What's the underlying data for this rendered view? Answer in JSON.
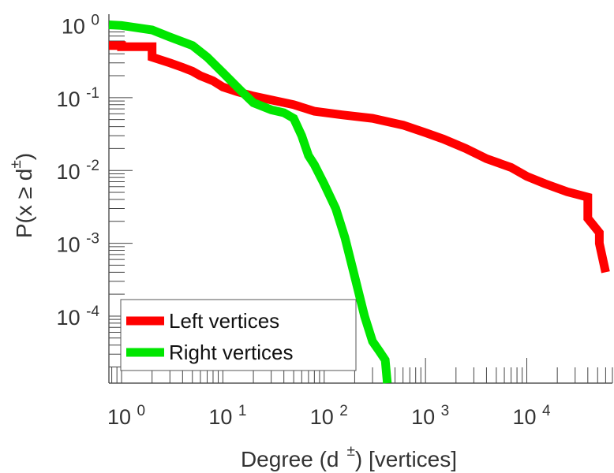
{
  "chart_data": {
    "type": "line",
    "title": "",
    "xlabel": {
      "main": "Degree (d",
      "sup": "±",
      "suffix": ") [vertices]"
    },
    "ylabel": {
      "main": "P(x ≥ d",
      "sup": "±",
      "suffix": ")"
    },
    "xscale": "log",
    "yscale": "log",
    "xlim": [
      0.75,
      70000
    ],
    "ylim": [
      1.2e-05,
      1.4
    ],
    "grid": false,
    "legend_position": "bottom-left",
    "xticks": [
      {
        "value": 1,
        "base": "10",
        "exp": "0"
      },
      {
        "value": 10,
        "base": "10",
        "exp": "1"
      },
      {
        "value": 100,
        "base": "10",
        "exp": "2"
      },
      {
        "value": 1000,
        "base": "10",
        "exp": "3"
      },
      {
        "value": 10000,
        "base": "10",
        "exp": "4"
      }
    ],
    "yticks": [
      {
        "value": 1,
        "base": "10",
        "exp": "0"
      },
      {
        "value": 0.1,
        "base": "10",
        "exp": "-1"
      },
      {
        "value": 0.01,
        "base": "10",
        "exp": "-2"
      },
      {
        "value": 0.001,
        "base": "10",
        "exp": "-3"
      },
      {
        "value": 0.0001,
        "base": "10",
        "exp": "-4"
      }
    ],
    "series": [
      {
        "name": "Left vertices",
        "color": "#ff0000",
        "x": [
          0.75,
          1,
          1,
          2,
          2,
          3,
          4,
          5,
          6,
          8,
          10,
          14,
          20,
          30,
          50,
          80,
          150,
          300,
          600,
          1000,
          1500,
          2500,
          4000,
          7000,
          10000,
          15000,
          25000,
          40000,
          40000,
          52000,
          52000,
          60000
        ],
        "y": [
          0.52,
          0.52,
          0.5,
          0.5,
          0.36,
          0.3,
          0.26,
          0.23,
          0.2,
          0.17,
          0.14,
          0.12,
          0.105,
          0.093,
          0.08,
          0.065,
          0.058,
          0.052,
          0.042,
          0.033,
          0.027,
          0.02,
          0.0145,
          0.011,
          0.0083,
          0.0066,
          0.0051,
          0.0043,
          0.0022,
          0.0014,
          0.001,
          0.0004
        ]
      },
      {
        "name": "Right vertices",
        "color": "#00e600",
        "x": [
          0.75,
          1,
          2,
          3,
          5,
          7,
          10,
          15,
          20,
          30,
          40,
          50,
          60,
          70,
          80,
          100,
          130,
          160,
          200,
          250,
          300,
          350,
          400,
          420
        ],
        "y": [
          1,
          0.98,
          0.85,
          0.68,
          0.52,
          0.36,
          0.22,
          0.125,
          0.085,
          0.068,
          0.062,
          0.052,
          0.03,
          0.016,
          0.012,
          0.0065,
          0.003,
          0.0012,
          0.00035,
          0.0001,
          4.5e-05,
          3.3e-05,
          2.5e-05,
          1.2e-05
        ]
      }
    ]
  }
}
